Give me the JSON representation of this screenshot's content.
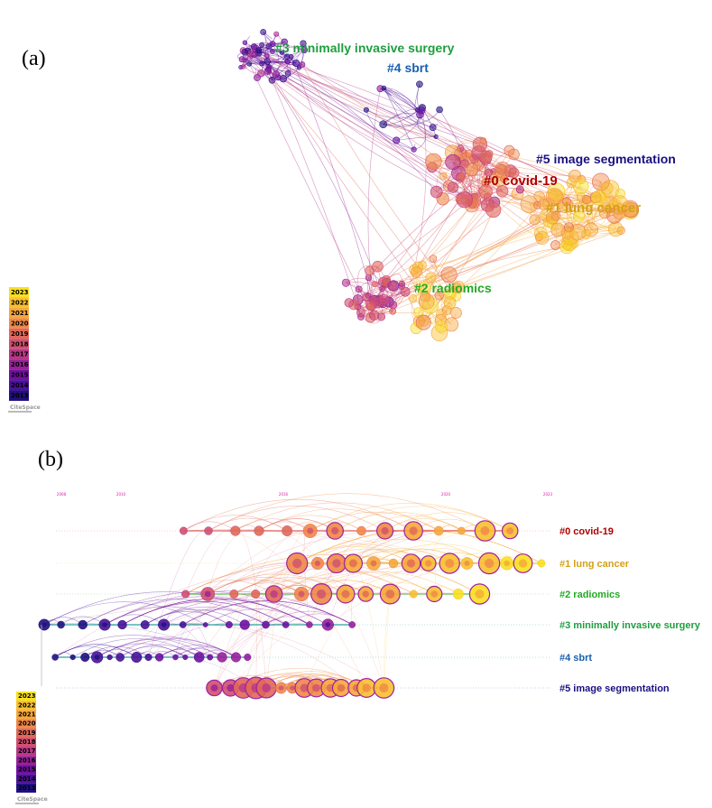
{
  "panels": {
    "a": {
      "label": "(a)"
    },
    "b": {
      "label": "(b)"
    }
  },
  "clusters": [
    {
      "id": "0",
      "label": "#0 covid-19",
      "color": "#b00000"
    },
    {
      "id": "1",
      "label": "#1 lung cancer",
      "color": "#d4a017"
    },
    {
      "id": "2",
      "label": "#2 radiomics",
      "color": "#22aa22"
    },
    {
      "id": "3",
      "label": "#3 minimally invasive surgery",
      "color": "#1e9e3e"
    },
    {
      "id": "4",
      "label": "#4 sbrt",
      "color": "#1a5fb0"
    },
    {
      "id": "5",
      "label": "#5 image segmentation",
      "color": "#1a1080"
    }
  ],
  "legend": {
    "years": [
      "2023",
      "2022",
      "2021",
      "2020",
      "2019",
      "2018",
      "2017",
      "2016",
      "2015",
      "2014",
      "2013"
    ],
    "colors": [
      "#f8e020",
      "#f8c030",
      "#f6a83a",
      "#f08848",
      "#e06858",
      "#d05070",
      "#b83888",
      "#982098",
      "#7010a0",
      "#4a1098",
      "#201080"
    ],
    "brand": "CiteSpace"
  },
  "timeline_ticks": [
    "2008",
    "2010",
    "2016",
    "2020",
    "2023"
  ]
}
